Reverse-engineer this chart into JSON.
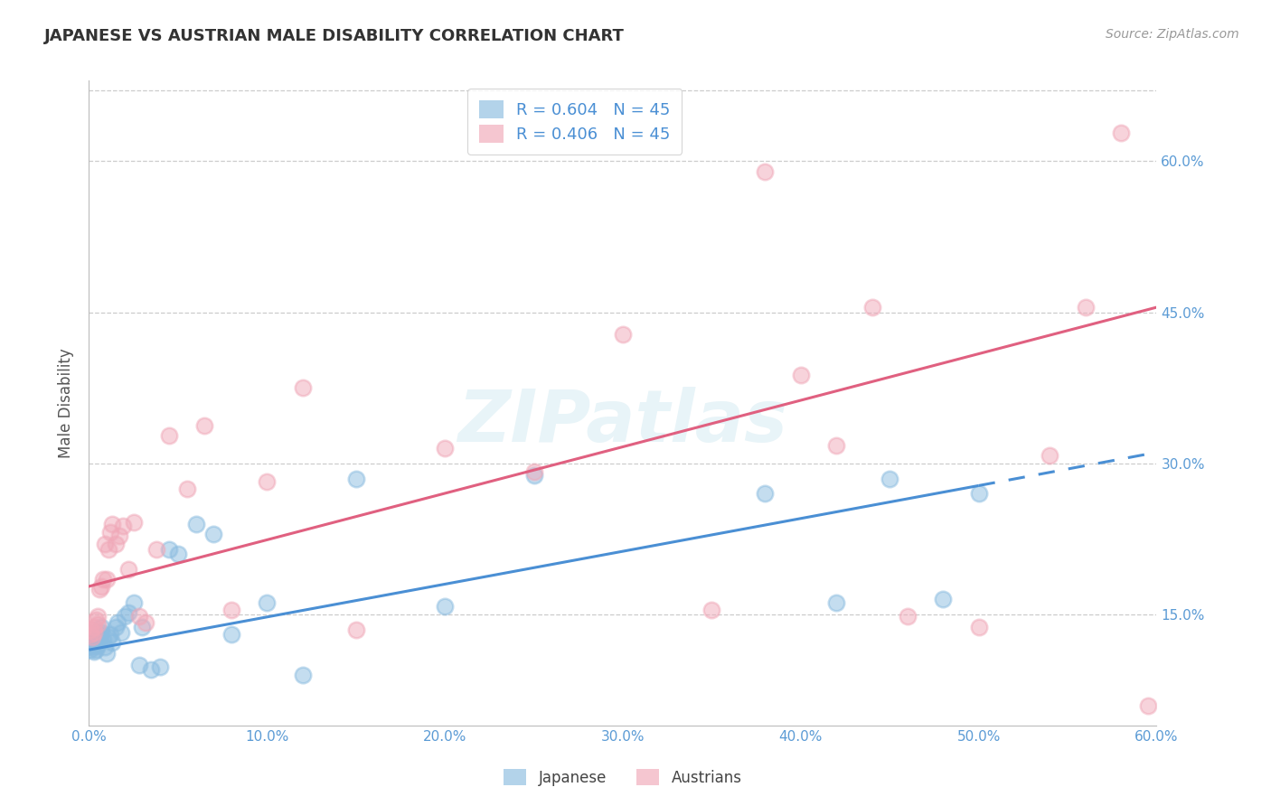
{
  "title": "JAPANESE VS AUSTRIAN MALE DISABILITY CORRELATION CHART",
  "source": "Source: ZipAtlas.com",
  "ylabel": "Male Disability",
  "xmin": 0.0,
  "xmax": 0.6,
  "ymin": 0.04,
  "ymax": 0.68,
  "yticks": [
    0.15,
    0.3,
    0.45,
    0.6
  ],
  "ytick_labels": [
    "15.0%",
    "30.0%",
    "45.0%",
    "60.0%"
  ],
  "xticks": [
    0.0,
    0.1,
    0.2,
    0.3,
    0.4,
    0.5,
    0.6
  ],
  "xtick_labels": [
    "0.0%",
    "10.0%",
    "20.0%",
    "30.0%",
    "40.0%",
    "50.0%",
    "60.0%"
  ],
  "watermark": "ZIPatlas",
  "legend_R_entries": [
    "R = 0.604   N = 45",
    "R = 0.406   N = 45"
  ],
  "legend_labels": [
    "Japanese",
    "Austrians"
  ],
  "japanese_color": "#8bbce0",
  "austrian_color": "#f0a8b8",
  "blue_line_color": "#4a8fd4",
  "pink_line_color": "#e06080",
  "axis_label_color": "#5b9bd5",
  "title_color": "#333333",
  "source_color": "#999999",
  "grid_color": "#cccccc",
  "jp_line_solid": {
    "x0": 0.0,
    "y0": 0.115,
    "x1": 0.5,
    "y1": 0.278
  },
  "jp_line_dash": {
    "x0": 0.5,
    "y0": 0.278,
    "x1": 0.6,
    "y1": 0.311
  },
  "at_line": {
    "x0": 0.0,
    "y0": 0.178,
    "x1": 0.6,
    "y1": 0.455
  },
  "japanese_x": [
    0.001,
    0.001,
    0.002,
    0.002,
    0.003,
    0.003,
    0.004,
    0.004,
    0.005,
    0.005,
    0.006,
    0.006,
    0.007,
    0.007,
    0.008,
    0.009,
    0.01,
    0.011,
    0.012,
    0.013,
    0.015,
    0.016,
    0.018,
    0.02,
    0.022,
    0.025,
    0.028,
    0.03,
    0.035,
    0.04,
    0.045,
    0.05,
    0.06,
    0.07,
    0.08,
    0.1,
    0.12,
    0.15,
    0.2,
    0.25,
    0.38,
    0.42,
    0.45,
    0.48,
    0.5
  ],
  "japanese_y": [
    0.115,
    0.12,
    0.118,
    0.122,
    0.113,
    0.12,
    0.115,
    0.122,
    0.12,
    0.125,
    0.125,
    0.13,
    0.132,
    0.138,
    0.125,
    0.118,
    0.112,
    0.128,
    0.13,
    0.122,
    0.138,
    0.142,
    0.132,
    0.148,
    0.152,
    0.162,
    0.1,
    0.138,
    0.095,
    0.098,
    0.215,
    0.21,
    0.24,
    0.23,
    0.13,
    0.162,
    0.09,
    0.285,
    0.158,
    0.288,
    0.27,
    0.162,
    0.285,
    0.165,
    0.27
  ],
  "austrian_x": [
    0.001,
    0.001,
    0.002,
    0.003,
    0.003,
    0.004,
    0.005,
    0.005,
    0.006,
    0.007,
    0.008,
    0.009,
    0.01,
    0.011,
    0.012,
    0.013,
    0.015,
    0.017,
    0.019,
    0.022,
    0.025,
    0.028,
    0.032,
    0.038,
    0.045,
    0.055,
    0.065,
    0.08,
    0.1,
    0.12,
    0.15,
    0.2,
    0.25,
    0.3,
    0.35,
    0.38,
    0.4,
    0.42,
    0.44,
    0.46,
    0.5,
    0.54,
    0.56,
    0.58,
    0.595
  ],
  "austrian_y": [
    0.13,
    0.135,
    0.128,
    0.138,
    0.132,
    0.145,
    0.14,
    0.148,
    0.175,
    0.178,
    0.185,
    0.22,
    0.185,
    0.215,
    0.232,
    0.24,
    0.22,
    0.228,
    0.238,
    0.195,
    0.242,
    0.148,
    0.142,
    0.215,
    0.328,
    0.275,
    0.338,
    0.155,
    0.282,
    0.375,
    0.135,
    0.315,
    0.292,
    0.428,
    0.155,
    0.59,
    0.388,
    0.318,
    0.455,
    0.148,
    0.138,
    0.308,
    0.455,
    0.628,
    0.06
  ]
}
